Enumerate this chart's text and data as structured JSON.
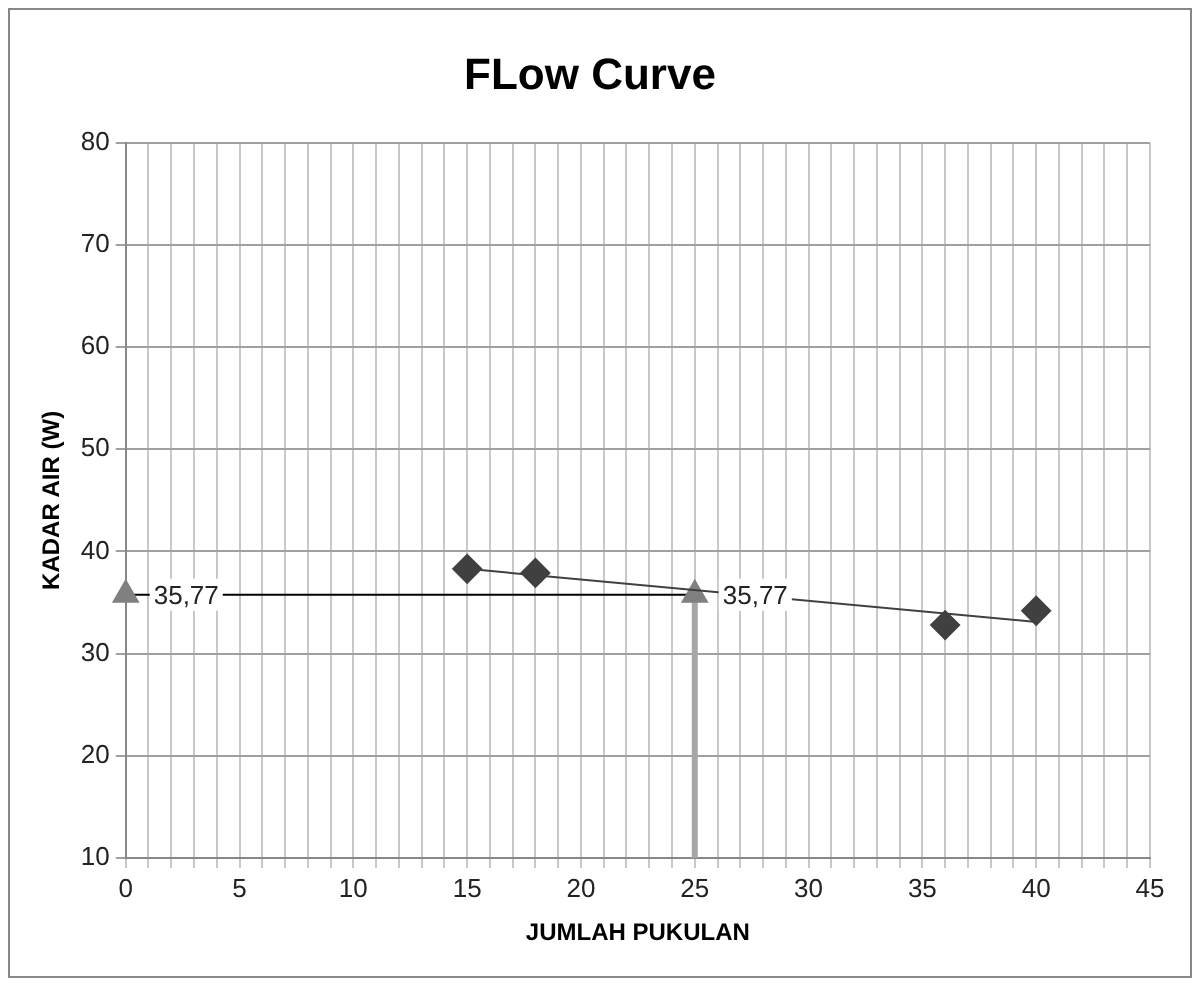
{
  "chart_data": {
    "type": "scatter",
    "title": "FLow Curve",
    "xlabel": "JUMLAH PUKULAN",
    "ylabel": "KADAR AIR (W)",
    "xlim": [
      0,
      45
    ],
    "ylim": [
      10,
      80
    ],
    "xticks": [
      0,
      {
        "value": 1,
        "label": null
      },
      {
        "value": 2,
        "label": null
      },
      {
        "value": 3,
        "label": null
      },
      {
        "value": 4,
        "label": null
      },
      5,
      {
        "value": 6,
        "label": null
      },
      {
        "value": 7,
        "label": null
      },
      {
        "value": 8,
        "label": null
      },
      {
        "value": 9,
        "label": null
      },
      10,
      {
        "value": 11,
        "label": null
      },
      {
        "value": 12,
        "label": null
      },
      {
        "value": 13,
        "label": null
      },
      {
        "value": 14,
        "label": null
      },
      15,
      {
        "value": 16,
        "label": null
      },
      {
        "value": 17,
        "label": null
      },
      {
        "value": 18,
        "label": null
      },
      {
        "value": 19,
        "label": null
      },
      20,
      {
        "value": 21,
        "label": null
      },
      {
        "value": 22,
        "label": null
      },
      {
        "value": 23,
        "label": null
      },
      {
        "value": 24,
        "label": null
      },
      25,
      {
        "value": 26,
        "label": null
      },
      {
        "value": 27,
        "label": null
      },
      {
        "value": 28,
        "label": null
      },
      {
        "value": 29,
        "label": null
      },
      30,
      {
        "value": 31,
        "label": null
      },
      {
        "value": 32,
        "label": null
      },
      {
        "value": 33,
        "label": null
      },
      {
        "value": 34,
        "label": null
      },
      35,
      {
        "value": 36,
        "label": null
      },
      {
        "value": 37,
        "label": null
      },
      {
        "value": 38,
        "label": null
      },
      {
        "value": 39,
        "label": null
      },
      40,
      {
        "value": 41,
        "label": null
      },
      {
        "value": 42,
        "label": null
      },
      {
        "value": 43,
        "label": null
      },
      {
        "value": 44,
        "label": null
      },
      45
    ],
    "yticks": [
      10,
      20,
      30,
      40,
      50,
      60,
      70,
      80
    ],
    "grid": true,
    "series": [
      {
        "type": "scatter",
        "color": "#404040",
        "marker": "diamond",
        "x": [
          15,
          18,
          36,
          40
        ],
        "values": [
          38.3,
          37.9,
          32.8,
          34.2
        ]
      },
      {
        "type": "line",
        "color": "#404040",
        "marker": "none",
        "x": [
          15,
          40
        ],
        "values": [
          38.3,
          33.1
        ]
      },
      {
        "type": "line",
        "color": "#808080",
        "marker": "triangle",
        "x": [
          0,
          25
        ],
        "values": [
          35.77,
          35.77
        ],
        "value_labels": [
          "35,77",
          "35,77"
        ]
      },
      {
        "type": "line",
        "color": "#a6a6a6",
        "marker": "none",
        "x": [
          25,
          25
        ],
        "values": [
          10,
          35.77
        ]
      }
    ]
  }
}
